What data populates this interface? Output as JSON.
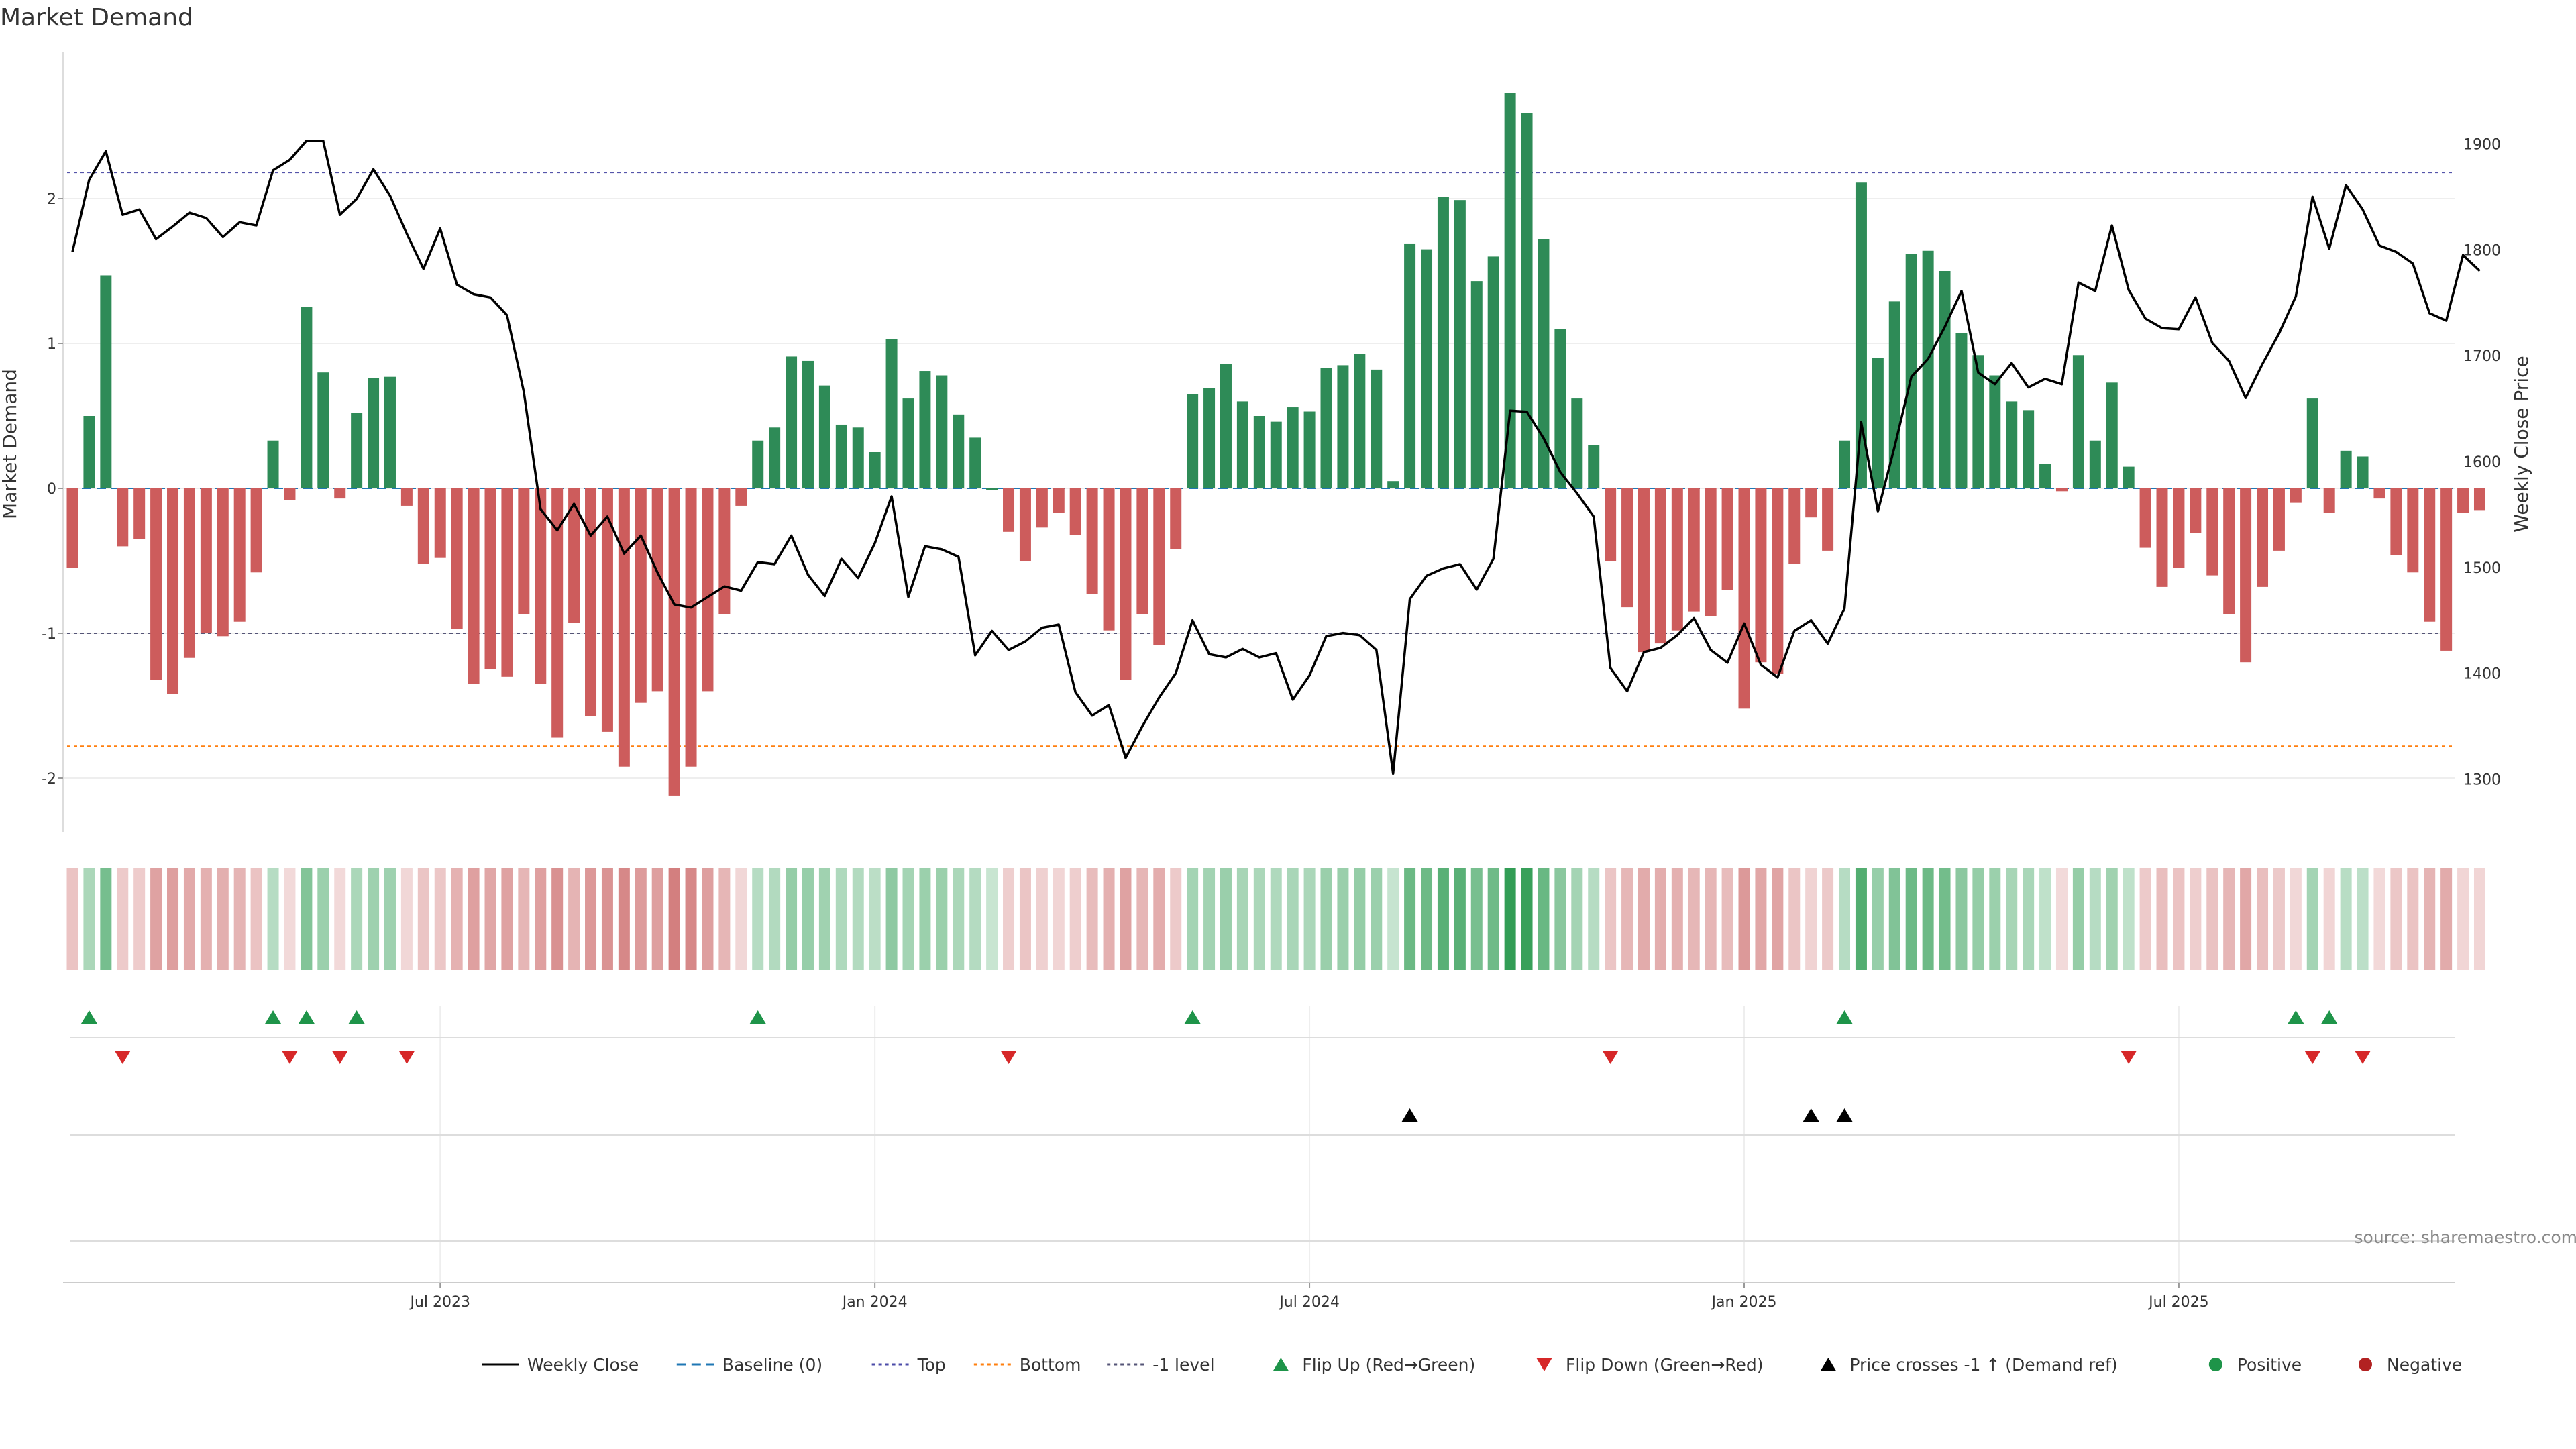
{
  "chart_data": {
    "type": "bar",
    "title": "Market Demand",
    "ylabel": "Market Demand",
    "y2label": "Weekly Close Price",
    "ylim": [
      -2.4,
      2.85
    ],
    "y2lim": [
      1240,
      1970
    ],
    "yticks": [
      -2,
      -1,
      0,
      1,
      2
    ],
    "y2ticks": [
      1300,
      1400,
      1500,
      1600,
      1700,
      1800,
      1900
    ],
    "reference_lines": {
      "top": 2.18,
      "bottom": -1.78,
      "minus_one": -1.0
    },
    "x_ticks": [
      {
        "index": 22,
        "label": "Jul 2023"
      },
      {
        "index": 48,
        "label": "Jan 2024"
      },
      {
        "index": 74,
        "label": "Jul 2024"
      },
      {
        "index": 100,
        "label": "Jan 2025"
      },
      {
        "index": 126,
        "label": "Jul 2025"
      }
    ],
    "series": [
      {
        "name": "Market Demand",
        "type": "bar",
        "values": [
          -0.55,
          0.5,
          1.47,
          -0.4,
          -0.35,
          -1.32,
          -1.42,
          -1.17,
          -1.0,
          -1.02,
          -0.92,
          -0.58,
          0.33,
          -0.08,
          1.25,
          0.8,
          -0.07,
          0.52,
          0.76,
          0.77,
          -0.12,
          -0.52,
          -0.48,
          -0.97,
          -1.35,
          -1.25,
          -1.3,
          -0.87,
          -1.35,
          -1.72,
          -0.93,
          -1.57,
          -1.68,
          -1.92,
          -1.48,
          -1.4,
          -2.12,
          -1.92,
          -1.4,
          -0.87,
          -0.12,
          0.33,
          0.42,
          0.91,
          0.88,
          0.71,
          0.44,
          0.42,
          0.25,
          1.03,
          0.62,
          0.81,
          0.78,
          0.51,
          0.35,
          0.0,
          -0.3,
          -0.5,
          -0.27,
          -0.17,
          -0.32,
          -0.73,
          -0.98,
          -1.32,
          -0.87,
          -1.08,
          -0.42,
          0.65,
          0.69,
          0.86,
          0.6,
          0.5,
          0.46,
          0.56,
          0.53,
          0.83,
          0.85,
          0.93,
          0.82,
          0.05,
          1.69,
          1.65,
          2.01,
          1.99,
          1.43,
          1.6,
          2.73,
          2.59,
          1.72,
          1.1,
          0.62,
          0.3,
          -0.5,
          -0.82,
          -1.13,
          -1.07,
          -0.98,
          -0.85,
          -0.88,
          -0.7,
          -1.52,
          -1.2,
          -1.28,
          -0.52,
          -0.2,
          -0.43,
          0.33,
          2.11,
          0.9,
          1.29,
          1.62,
          1.64,
          1.5,
          1.07,
          0.92,
          0.78,
          0.6,
          0.54,
          0.17,
          -0.02,
          0.92,
          0.33,
          0.73,
          0.15,
          -0.41,
          -0.68,
          -0.55,
          -0.31,
          -0.6,
          -0.87,
          -1.2,
          -0.68,
          -0.43,
          -0.1,
          0.62,
          -0.17,
          0.26,
          0.22,
          -0.07,
          -0.46,
          -0.58,
          -0.92,
          -1.12,
          -0.17,
          -0.15
        ]
      },
      {
        "name": "Weekly Close",
        "type": "line",
        "axis": "right",
        "values": [
          1798,
          1866,
          1893,
          1833,
          1838,
          1810,
          1822,
          1835,
          1830,
          1812,
          1826,
          1823,
          1875,
          1885,
          1903,
          1903,
          1833,
          1848,
          1876,
          1851,
          1815,
          1782,
          1820,
          1767,
          1758,
          1755,
          1738,
          1666,
          1555,
          1535,
          1560,
          1530,
          1548,
          1513,
          1530,
          1495,
          1465,
          1462,
          1472,
          1482,
          1478,
          1505,
          1503,
          1530,
          1493,
          1473,
          1508,
          1490,
          1523,
          1567,
          1472,
          1520,
          1517,
          1510,
          1417,
          1440,
          1422,
          1430,
          1443,
          1446,
          1382,
          1360,
          1370,
          1320,
          1350,
          1377,
          1400,
          1450,
          1418,
          1415,
          1423,
          1415,
          1419,
          1375,
          1398,
          1435,
          1438,
          1436,
          1422,
          1305,
          1470,
          1492,
          1499,
          1503,
          1479,
          1508,
          1648,
          1647,
          1622,
          1590,
          1570,
          1548,
          1405,
          1383,
          1420,
          1424,
          1436,
          1452,
          1422,
          1410,
          1447,
          1408,
          1396,
          1440,
          1450,
          1428,
          1461,
          1637,
          1553,
          1614,
          1680,
          1697,
          1727,
          1761,
          1684,
          1673,
          1693,
          1670,
          1678,
          1673,
          1769,
          1761,
          1823,
          1762,
          1735,
          1726,
          1725,
          1755,
          1712,
          1695,
          1660,
          1692,
          1721,
          1756,
          1850,
          1801,
          1861,
          1838,
          1804,
          1798,
          1787,
          1740,
          1733,
          1795,
          1780
        ]
      }
    ],
    "strip_rows": [
      {
        "name": "Flip Up (Red→Green)",
        "marker": "triangle-up",
        "color": "#1e9449",
        "indices": [
          1,
          12,
          14,
          17,
          41,
          67,
          106,
          133,
          135
        ]
      },
      {
        "name": "Flip Down (Green→Red)",
        "marker": "triangle-down",
        "color": "#d62728",
        "indices": [
          3,
          13,
          16,
          20,
          56,
          92,
          123,
          134,
          137
        ]
      },
      {
        "name": "Price crosses -1 ↑ (Demand ref)",
        "marker": "triangle-up",
        "color": "#000000",
        "indices": [
          80,
          104,
          106
        ]
      },
      {
        "name": "Positive/Negative dots",
        "marker": "circle",
        "indices": []
      }
    ],
    "legend": [
      {
        "label": "Weekly Close",
        "style": "line-solid",
        "color": "#000000"
      },
      {
        "label": "Baseline (0)",
        "style": "line-dashed",
        "color": "#1f77b4"
      },
      {
        "label": "Top",
        "style": "line-dotted",
        "color": "#4b4ba8"
      },
      {
        "label": "Bottom",
        "style": "line-dotted",
        "color": "#ff7f0e"
      },
      {
        "label": "-1 level",
        "style": "line-dotted",
        "color": "#555577"
      },
      {
        "label": "Flip Up (Red→Green)",
        "style": "triangle-up",
        "color": "#1e9449"
      },
      {
        "label": "Flip Down (Green→Red)",
        "style": "triangle-down",
        "color": "#d62728"
      },
      {
        "label": "Price crosses -1 ↑ (Demand ref)",
        "style": "triangle-up",
        "color": "#000000"
      },
      {
        "label": "Positive",
        "style": "circle",
        "color": "#1e9449"
      },
      {
        "label": "Negative",
        "style": "circle",
        "color": "#b22222"
      }
    ],
    "source": "source: sharemaestro.com",
    "colors": {
      "positive": "#2e8b57",
      "negative": "#cd5c5c",
      "price": "#000000"
    }
  }
}
